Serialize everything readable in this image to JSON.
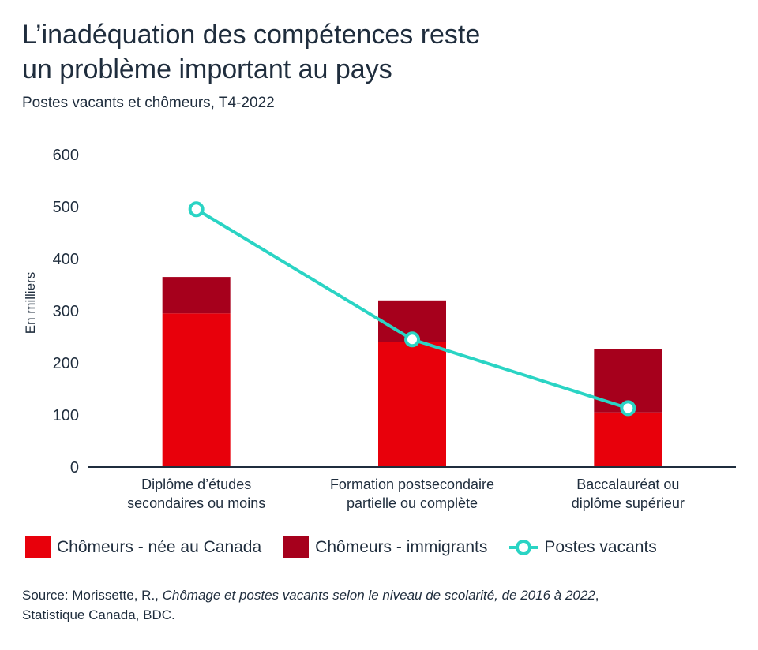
{
  "title_line1": "L’inadéquation des compétences reste",
  "title_line2": "un problème important au pays",
  "subtitle": "Postes vacants et chômeurs, T4-2022",
  "chart_data": {
    "type": "bar",
    "stacked": true,
    "categories": [
      [
        "Diplôme d’études",
        "secondaires ou moins"
      ],
      [
        "Formation postsecondaire",
        "partielle ou complète"
      ],
      [
        "Baccalauréat ou",
        "diplôme supérieur"
      ]
    ],
    "series": [
      {
        "name": "Chômeurs - née au Canada",
        "kind": "bar",
        "color": "#e8000b",
        "values": [
          295,
          240,
          105
        ]
      },
      {
        "name": "Chômeurs - immigrants",
        "kind": "bar",
        "color": "#a6001c",
        "values": [
          70,
          80,
          122
        ]
      },
      {
        "name": "Postes vacants",
        "kind": "line",
        "color": "#2ad4c4",
        "values": [
          495,
          245,
          113
        ]
      }
    ],
    "ylabel": "En milliers",
    "ylim": [
      0,
      600
    ],
    "yticks": [
      0,
      100,
      200,
      300,
      400,
      500,
      600
    ],
    "grid": false,
    "legend_position": "bottom"
  },
  "source": {
    "prefix": "Source: Morissette, R., ",
    "italic": "Chômage et postes vacants selon le niveau de scolarité, de 2016 à 2022",
    "suffix": ",",
    "line2": "Statistique Canada, BDC."
  }
}
